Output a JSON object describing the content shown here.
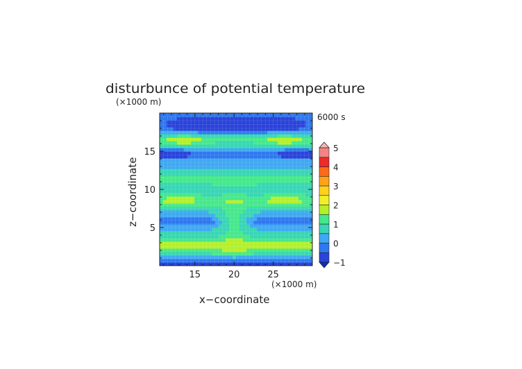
{
  "chart_data": {
    "type": "heatmap",
    "title": "disturbunce of potential temperature",
    "time_label": "6000 s",
    "xlabel": "x−coordinate",
    "ylabel": "z−coordinate",
    "x_unit": "(×1000 m)",
    "y_unit": "(×1000 m)",
    "xlim": [
      10.5,
      30
    ],
    "ylim": [
      0,
      20
    ],
    "xticks": [
      15,
      20,
      25
    ],
    "yticks": [
      5,
      10,
      15
    ],
    "grid": true,
    "colorbar": {
      "levels": [
        -1,
        -0.5,
        0,
        0.5,
        1,
        1.5,
        2,
        2.5,
        3,
        3.5,
        4,
        4.5,
        5
      ],
      "colors": [
        "#2a43d9",
        "#2f78ef",
        "#3fa8f2",
        "#38d6b4",
        "#46e88c",
        "#b4f02a",
        "#f0f02a",
        "#ffd21e",
        "#ffa31a",
        "#ff6a1a",
        "#ee2a2a",
        "#f48484",
        "#f8b8b8"
      ],
      "tick_labels": [
        "5",
        "4",
        "3",
        "2",
        "1",
        "0",
        "−1"
      ],
      "extend": "both"
    }
  }
}
